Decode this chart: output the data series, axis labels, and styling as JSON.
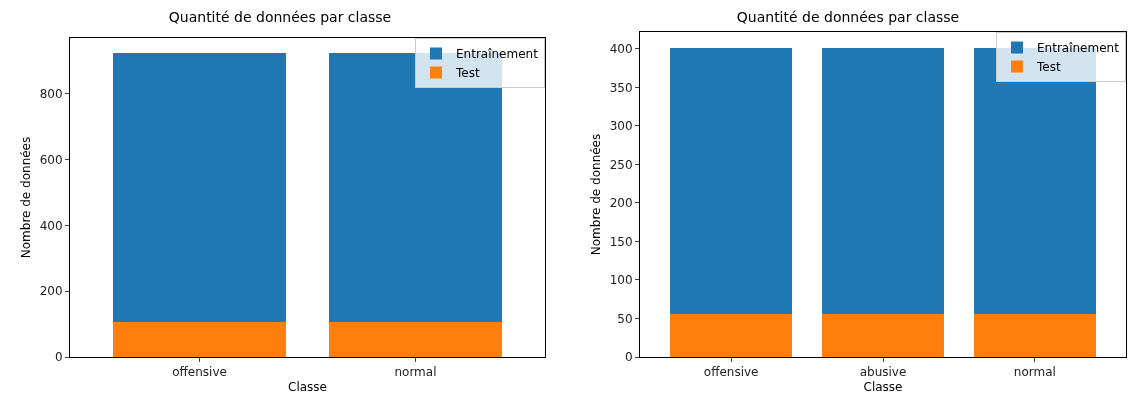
{
  "chart_data": [
    {
      "type": "bar",
      "title": "Quantité de données par classe",
      "xlabel": "Classe",
      "ylabel": "Nombre de données",
      "categories": [
        "offensive",
        "normal"
      ],
      "stacked": true,
      "series": [
        {
          "name": "Test",
          "color": "#ff7f0e",
          "values": [
            106,
            106
          ]
        },
        {
          "name": "Entraînement",
          "color": "#1f77b4",
          "values": [
            818,
            818
          ]
        }
      ],
      "ylim": [
        0,
        970
      ],
      "yticks": [
        0,
        200,
        400,
        600,
        800
      ],
      "grid": false,
      "legend": "top right"
    },
    {
      "type": "bar",
      "title": "Quantité de données par classe",
      "xlabel": "Classe",
      "ylabel": "Nombre de données",
      "categories": [
        "offensive",
        "abusive",
        "normal"
      ],
      "stacked": true,
      "series": [
        {
          "name": "Test",
          "color": "#ff7f0e",
          "values": [
            56,
            56,
            56
          ]
        },
        {
          "name": "Entraînement",
          "color": "#1f77b4",
          "values": [
            345,
            345,
            345
          ]
        }
      ],
      "ylim": [
        0,
        422
      ],
      "yticks": [
        0,
        50,
        100,
        150,
        200,
        250,
        300,
        350,
        400
      ],
      "grid": false,
      "legend": "top right"
    }
  ]
}
